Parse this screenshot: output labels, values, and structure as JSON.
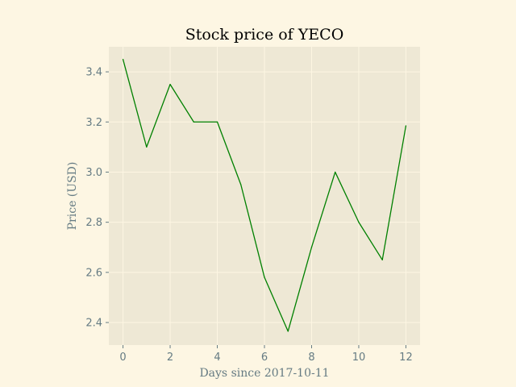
{
  "colors": {
    "background": "#fdf6e3",
    "plot_background": "#eee8d5",
    "grid": "#fdf6e3",
    "text": "#657b83",
    "title": "#000000",
    "line": "#008000"
  },
  "chart_data": {
    "type": "line",
    "title": "Stock price of YECO",
    "xlabel": "Days since 2017-10-11",
    "ylabel": "Price (USD)",
    "xlim": [
      -0.6,
      12.6
    ],
    "ylim": [
      2.31,
      3.5
    ],
    "xticks": [
      0,
      2,
      4,
      6,
      8,
      10,
      12
    ],
    "yticks": [
      2.4,
      2.6,
      2.8,
      3.0,
      3.2,
      3.4
    ],
    "grid": true,
    "series": [
      {
        "x": [
          0,
          1,
          2,
          3,
          4,
          5,
          6,
          7,
          8,
          9,
          10,
          11,
          12
        ],
        "y": [
          3.45,
          3.1,
          3.35,
          3.2,
          3.2,
          2.95,
          2.58,
          2.365,
          2.7,
          3.0,
          2.8,
          2.65,
          3.185
        ]
      }
    ]
  }
}
